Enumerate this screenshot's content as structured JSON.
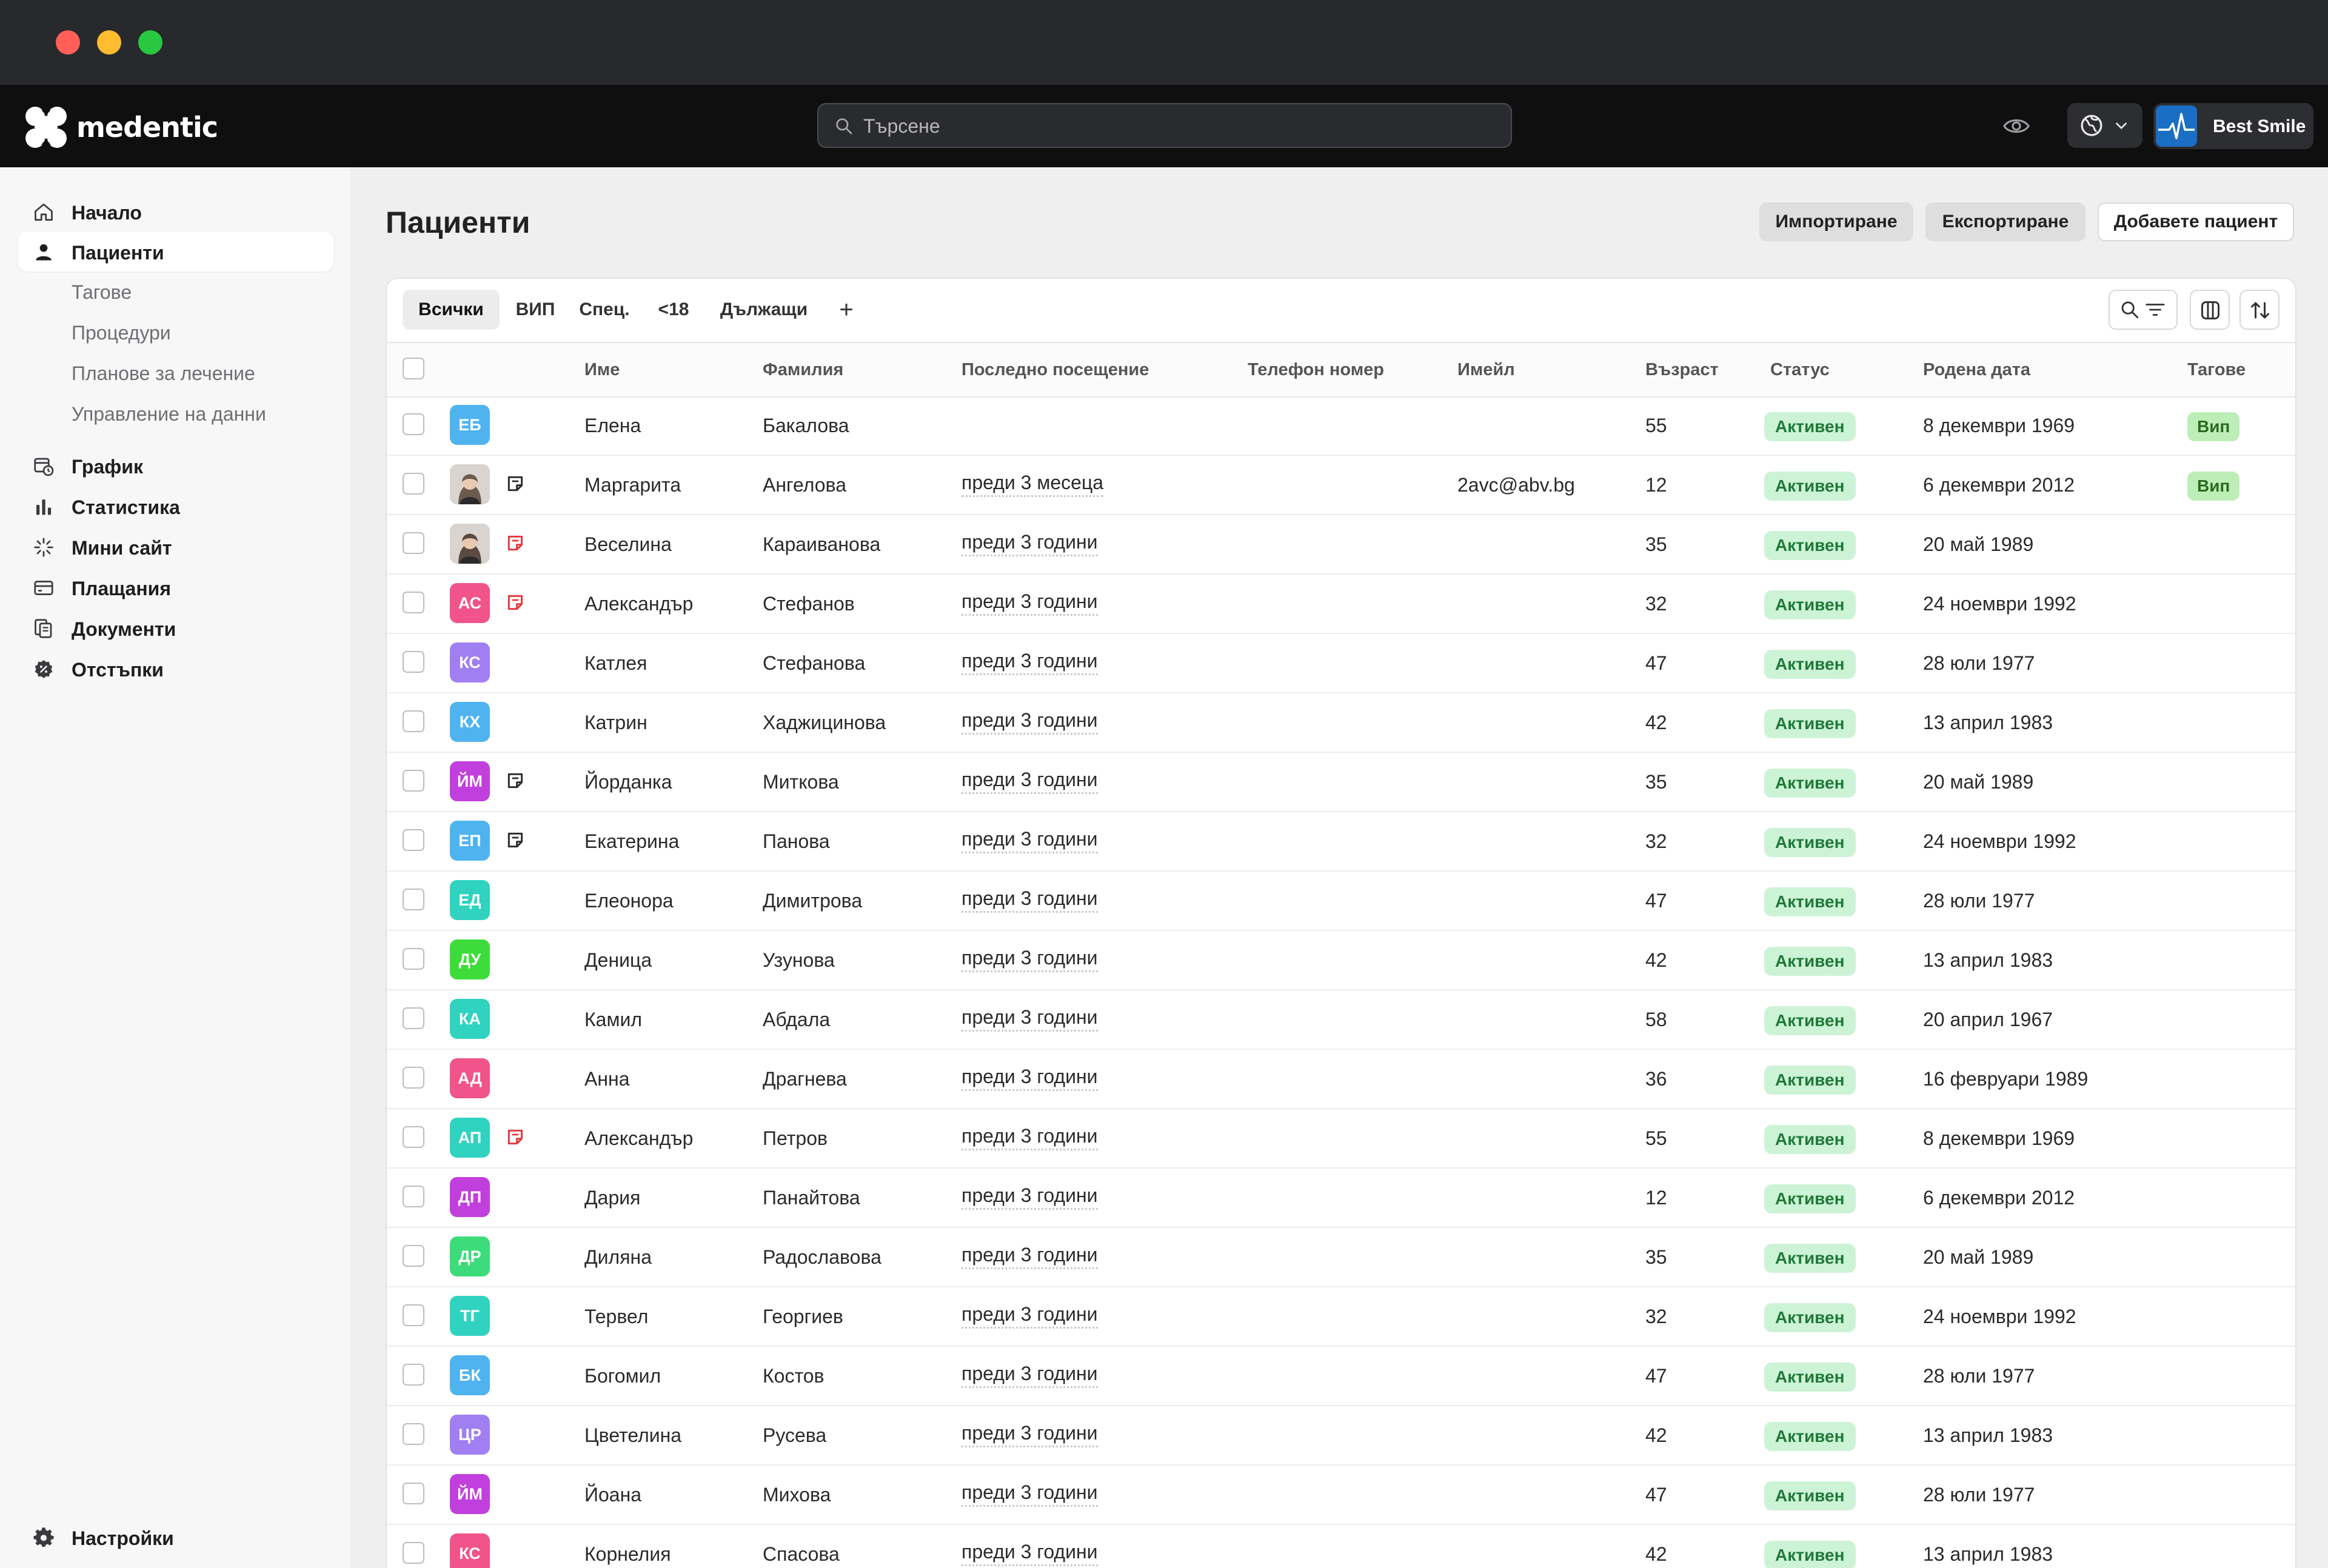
{
  "app": {
    "brand": "medentic",
    "clinic_name": "Best Smile",
    "search_placeholder": "Търсене"
  },
  "colors": {
    "accent_status_bg": "#cdf3d7",
    "accent_status_fg": "#1f7a37",
    "tag_bg": "#bdeeb8",
    "header_bg": "#0f0f10",
    "sidebar_bg": "#f7f7f8"
  },
  "sidebar": {
    "items": [
      {
        "label": "Начало",
        "icon": "home-icon"
      },
      {
        "label": "Пациенти",
        "icon": "user-icon"
      },
      {
        "label": "График",
        "icon": "calendar-clock-icon"
      },
      {
        "label": "Статистика",
        "icon": "bar-chart-icon"
      },
      {
        "label": "Мини сайт",
        "icon": "sparkle-icon"
      },
      {
        "label": "Плащания",
        "icon": "credit-card-icon"
      },
      {
        "label": "Документи",
        "icon": "documents-icon"
      },
      {
        "label": "Отстъпки",
        "icon": "discount-icon"
      }
    ],
    "patients_sub": [
      "Тагове",
      "Процедури",
      "Планове за лечение",
      "Управление на данни"
    ],
    "settings_label": "Настройки"
  },
  "page": {
    "title": "Пациенти",
    "import_label": "Импортиране",
    "export_label": "Експортиране",
    "add_label": "Добавете пациент"
  },
  "tabs": [
    "Всички",
    "ВИП",
    "Спец.",
    "<18",
    "Дължащи"
  ],
  "add_tab_symbol": "+",
  "columns": [
    "Име",
    "Фамилия",
    "Последно посещение",
    "Телефон номер",
    "Имейл",
    "Възраст",
    "Статус",
    "Родена дата",
    "Тагове"
  ],
  "patients": [
    {
      "initials": "ЕБ",
      "color": "#4fb3f0",
      "first": "Елена",
      "last": "Бакалова",
      "visit": "",
      "email": "",
      "age": "55",
      "status": "Активен",
      "birth": "8 декември 1969",
      "tag": "Вип",
      "note": ""
    },
    {
      "initials": "",
      "photo": true,
      "color": "#6b5a4e",
      "first": "Маргарита",
      "last": "Ангелова",
      "visit": "преди 3 месеца",
      "email": "2avc@abv.bg",
      "age": "12",
      "status": "Активен",
      "birth": "6 декември 2012",
      "tag": "Вип",
      "note": "dark"
    },
    {
      "initials": "",
      "photo": true,
      "color": "#5a4a40",
      "first": "Веселина",
      "last": "Караиванова",
      "visit": "преди 3 години",
      "email": "",
      "age": "35",
      "status": "Активен",
      "birth": "20 май 1989",
      "tag": "",
      "note": "red"
    },
    {
      "initials": "АС",
      "color": "#f0548a",
      "first": "Александър",
      "last": "Стефанов",
      "visit": "преди 3 години",
      "email": "",
      "age": "32",
      "status": "Активен",
      "birth": "24 ноември 1992",
      "tag": "",
      "note": "red"
    },
    {
      "initials": "КС",
      "color": "#a07ff2",
      "first": "Катлея",
      "last": "Стефанова",
      "visit": "преди 3 години",
      "email": "",
      "age": "47",
      "status": "Активен",
      "birth": "28 юли 1977",
      "tag": "",
      "note": ""
    },
    {
      "initials": "КХ",
      "color": "#4fb3f0",
      "first": "Катрин",
      "last": "Хаджицинова",
      "visit": "преди 3 години",
      "email": "",
      "age": "42",
      "status": "Активен",
      "birth": "13 април 1983",
      "tag": "",
      "note": ""
    },
    {
      "initials": "ЙМ",
      "color": "#c13fdc",
      "first": "Йорданка",
      "last": "Миткова",
      "visit": "преди 3 години",
      "email": "",
      "age": "35",
      "status": "Активен",
      "birth": "20 май 1989",
      "tag": "",
      "note": "dark"
    },
    {
      "initials": "ЕП",
      "color": "#4fb3f0",
      "first": "Екатерина",
      "last": "Панова",
      "visit": "преди 3 години",
      "email": "",
      "age": "32",
      "status": "Активен",
      "birth": "24 ноември 1992",
      "tag": "",
      "note": "dark"
    },
    {
      "initials": "ЕД",
      "color": "#2fd3c0",
      "first": "Елеонора",
      "last": "Димитрова",
      "visit": "преди 3 години",
      "email": "",
      "age": "47",
      "status": "Активен",
      "birth": "28 юли 1977",
      "tag": "",
      "note": ""
    },
    {
      "initials": "ДУ",
      "color": "#3ddc3a",
      "first": "Деница",
      "last": "Узунова",
      "visit": "преди 3 години",
      "email": "",
      "age": "42",
      "status": "Активен",
      "birth": "13 април 1983",
      "tag": "",
      "note": ""
    },
    {
      "initials": "КА",
      "color": "#2fd3c0",
      "first": "Камил",
      "last": "Абдала",
      "visit": "преди 3 години",
      "email": "",
      "age": "58",
      "status": "Активен",
      "birth": "20 април 1967",
      "tag": "",
      "note": ""
    },
    {
      "initials": "АД",
      "color": "#f0548a",
      "first": "Анна",
      "last": "Драгнева",
      "visit": "преди 3 години",
      "email": "",
      "age": "36",
      "status": "Активен",
      "birth": "16 февруари 1989",
      "tag": "",
      "note": ""
    },
    {
      "initials": "АП",
      "color": "#2fd3c0",
      "first": "Александър",
      "last": "Петров",
      "visit": "преди 3 години",
      "email": "",
      "age": "55",
      "status": "Активен",
      "birth": "8 декември 1969",
      "tag": "",
      "note": "red"
    },
    {
      "initials": "ДП",
      "color": "#c13fdc",
      "first": "Дария",
      "last": "Панайтова",
      "visit": "преди 3 години",
      "email": "",
      "age": "12",
      "status": "Активен",
      "birth": "6 декември 2012",
      "tag": "",
      "note": ""
    },
    {
      "initials": "ДР",
      "color": "#3ddc7a",
      "first": "Диляна",
      "last": "Радославова",
      "visit": "преди 3 години",
      "email": "",
      "age": "35",
      "status": "Активен",
      "birth": "20 май 1989",
      "tag": "",
      "note": ""
    },
    {
      "initials": "ТГ",
      "color": "#2fd3c0",
      "first": "Тервел",
      "last": "Георгиев",
      "visit": "преди 3 години",
      "email": "",
      "age": "32",
      "status": "Активен",
      "birth": "24 ноември 1992",
      "tag": "",
      "note": ""
    },
    {
      "initials": "БК",
      "color": "#4fb3f0",
      "first": "Богомил",
      "last": "Костов",
      "visit": "преди 3 години",
      "email": "",
      "age": "47",
      "status": "Активен",
      "birth": "28 юли 1977",
      "tag": "",
      "note": ""
    },
    {
      "initials": "ЦР",
      "color": "#a07ff2",
      "first": "Цветелина",
      "last": "Русева",
      "visit": "преди 3 години",
      "email": "",
      "age": "42",
      "status": "Активен",
      "birth": "13 април 1983",
      "tag": "",
      "note": ""
    },
    {
      "initials": "ЙМ",
      "color": "#c13fdc",
      "first": "Йоана",
      "last": "Михова",
      "visit": "преди 3 години",
      "email": "",
      "age": "47",
      "status": "Активен",
      "birth": "28 юли 1977",
      "tag": "",
      "note": ""
    },
    {
      "initials": "КС",
      "color": "#f0548a",
      "first": "Корнелия",
      "last": "Спасова",
      "visit": "преди 3 години",
      "email": "",
      "age": "42",
      "status": "Активен",
      "birth": "13 април 1983",
      "tag": "",
      "note": ""
    }
  ]
}
